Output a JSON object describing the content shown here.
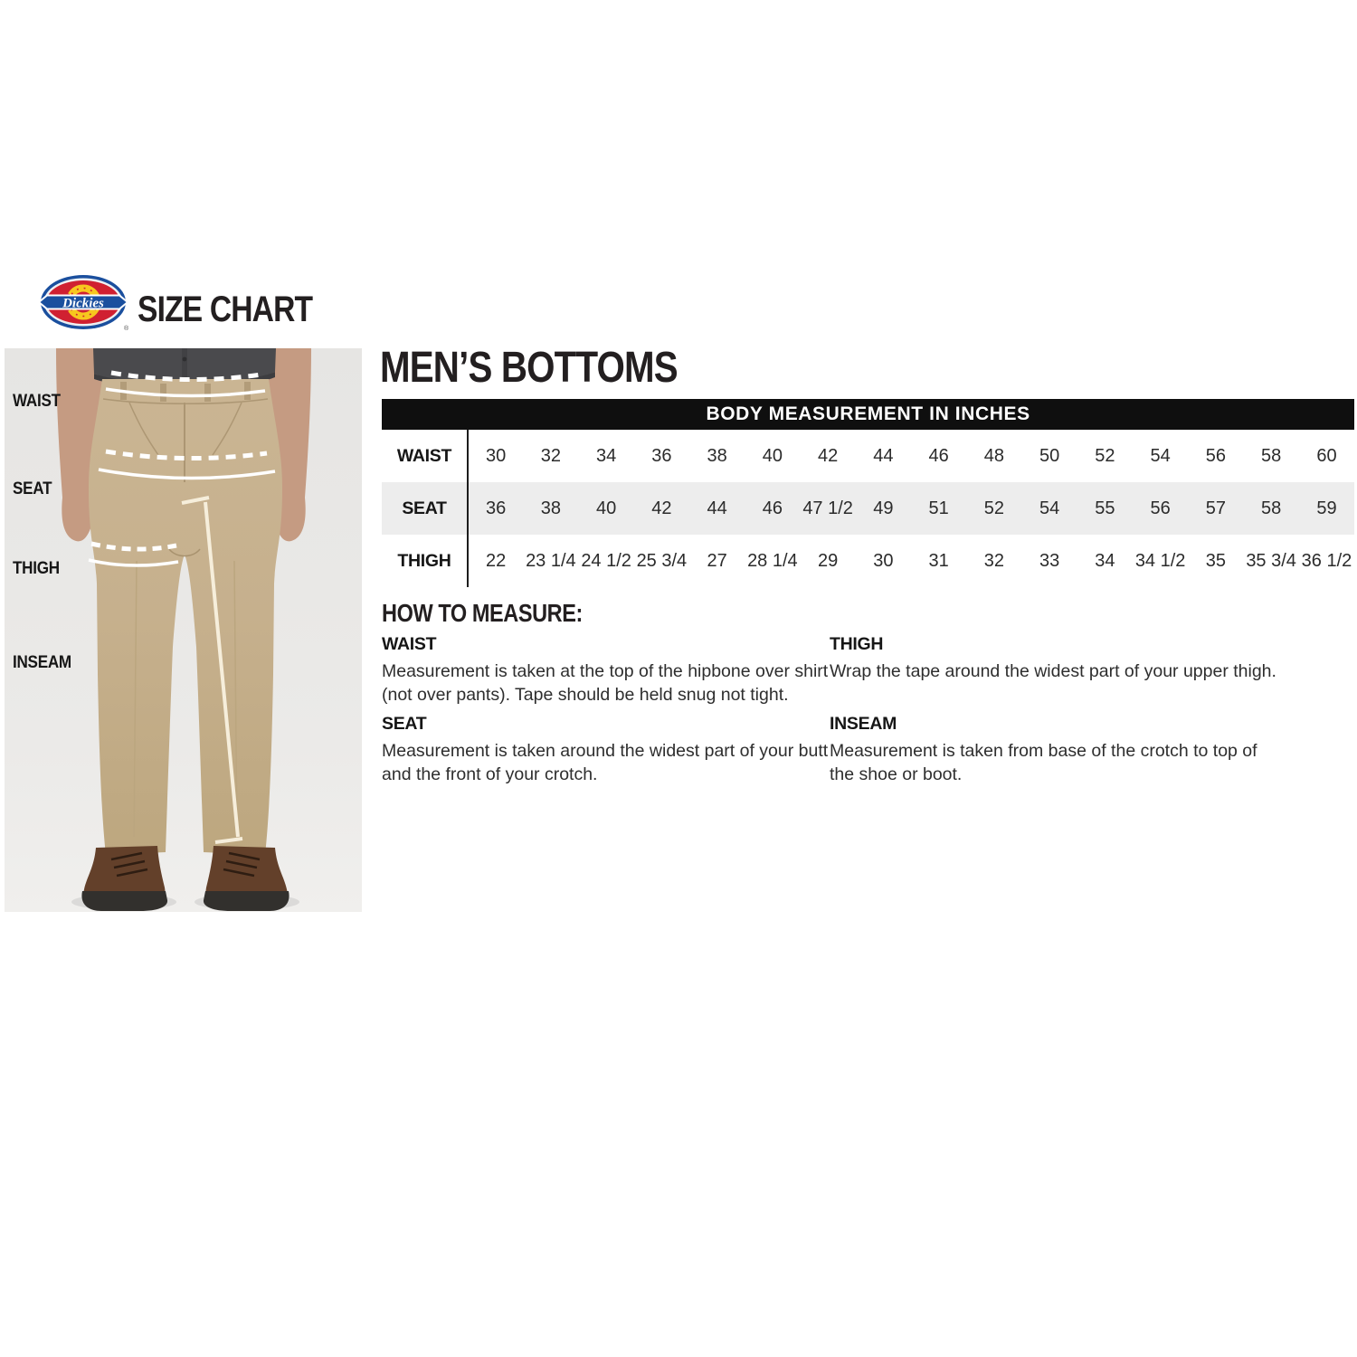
{
  "brand": {
    "logo_text": "Dickies",
    "registered_mark": "®",
    "title": "SIZE CHART"
  },
  "figure": {
    "labels": [
      "WAIST",
      "SEAT",
      "THIGH",
      "INSEAM"
    ]
  },
  "content": {
    "title": "MEN’S BOTTOMS",
    "table": {
      "header": "BODY MEASUREMENT IN INCHES",
      "rows": [
        {
          "label": "WAIST",
          "values": [
            "30",
            "32",
            "34",
            "36",
            "38",
            "40",
            "42",
            "44",
            "46",
            "48",
            "50",
            "52",
            "54",
            "56",
            "58",
            "60"
          ]
        },
        {
          "label": "SEAT",
          "values": [
            "36",
            "38",
            "40",
            "42",
            "44",
            "46",
            "47 1/2",
            "49",
            "51",
            "52",
            "54",
            "55",
            "56",
            "57",
            "58",
            "59"
          ]
        },
        {
          "label": "THIGH",
          "values": [
            "22",
            "23 1/4",
            "24 1/2",
            "25 3/4",
            "27",
            "28 1/4",
            "29",
            "30",
            "31",
            "32",
            "33",
            "34",
            "34 1/2",
            "35",
            "35 3/4",
            "36 1/2"
          ]
        }
      ]
    },
    "how_to_measure": {
      "title": "HOW TO MEASURE:",
      "items": [
        {
          "label": "WAIST",
          "text": "Measurement is taken at the top of the hipbone over shirt\n(not over pants). Tape should be held snug not tight."
        },
        {
          "label": "SEAT",
          "text": "Measurement is taken around the widest part of your butt\nand the front of your crotch."
        },
        {
          "label": "THIGH",
          "text": "Wrap the tape around the widest part of your upper thigh."
        },
        {
          "label": "INSEAM",
          "text": "Measurement is taken from base of the crotch to top of\nthe shoe or boot."
        }
      ]
    }
  },
  "colors": {
    "logo_red": "#d02031",
    "logo_blue": "#1a4f9e",
    "logo_yellow": "#f7c71e",
    "header_bar": "#0f0f0f",
    "alt_row_gray": "#ededed",
    "photo_background": "#e8e7e5",
    "pants_khaki": "#c6b08d",
    "text": "#231f20"
  }
}
